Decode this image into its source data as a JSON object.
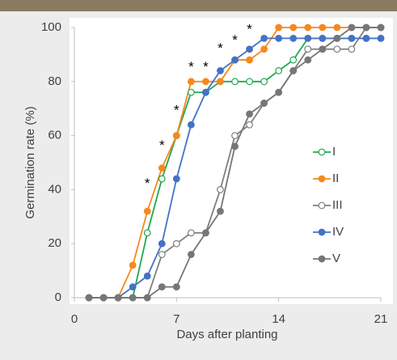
{
  "chart_data": {
    "type": "line",
    "y_label": "Germination rate  (%)",
    "x_label": "Days after planting",
    "x": [
      1,
      2,
      3,
      4,
      5,
      6,
      7,
      8,
      9,
      10,
      11,
      12,
      13,
      14,
      15,
      16,
      17,
      18,
      19,
      20,
      21
    ],
    "series": [
      {
        "name": "I",
        "color": "#1fa84f",
        "marker": "open",
        "values": [
          0,
          0,
          0,
          0,
          24,
          44,
          60,
          76,
          76,
          80,
          80,
          80,
          80,
          84,
          88,
          96,
          96,
          96,
          96,
          96,
          96
        ]
      },
      {
        "name": "II",
        "color": "#f5891f",
        "marker": "filled",
        "values": [
          0,
          0,
          0,
          12,
          32,
          48,
          60,
          80,
          80,
          80,
          88,
          88,
          92,
          100,
          100,
          100,
          100,
          100,
          100,
          100,
          100
        ]
      },
      {
        "name": "III",
        "color": "#7f7f7f",
        "marker": "open",
        "values": [
          0,
          0,
          0,
          0,
          0,
          16,
          20,
          24,
          24,
          40,
          60,
          64,
          72,
          76,
          84,
          92,
          92,
          92,
          92,
          100,
          100
        ]
      },
      {
        "name": "IV",
        "color": "#4472c4",
        "marker": "filled",
        "values": [
          0,
          0,
          0,
          4,
          8,
          20,
          44,
          64,
          76,
          84,
          88,
          92,
          96,
          96,
          96,
          96,
          96,
          96,
          96,
          96,
          96
        ]
      },
      {
        "name": "V",
        "color": "#767676",
        "marker": "filled",
        "values": [
          0,
          0,
          0,
          0,
          0,
          4,
          4,
          16,
          24,
          32,
          56,
          68,
          72,
          76,
          84,
          88,
          92,
          96,
          100,
          100,
          100
        ]
      }
    ],
    "annotations": [
      {
        "text": "*",
        "x": 5,
        "y": 43
      },
      {
        "text": "*",
        "x": 6,
        "y": 57
      },
      {
        "text": "*",
        "x": 7,
        "y": 70
      },
      {
        "text": "*",
        "x": 8,
        "y": 86
      },
      {
        "text": "*",
        "x": 9,
        "y": 86
      },
      {
        "text": "*",
        "x": 10,
        "y": 93
      },
      {
        "text": "*",
        "x": 11,
        "y": 96
      },
      {
        "text": "*",
        "x": 12,
        "y": 100
      }
    ],
    "xlim": [
      0,
      21
    ],
    "xticks": [
      0,
      7,
      14,
      21
    ],
    "ylim": [
      0,
      100
    ],
    "yticks": [
      0,
      20,
      40,
      60,
      80,
      100
    ],
    "grid": false,
    "legend": "right"
  }
}
